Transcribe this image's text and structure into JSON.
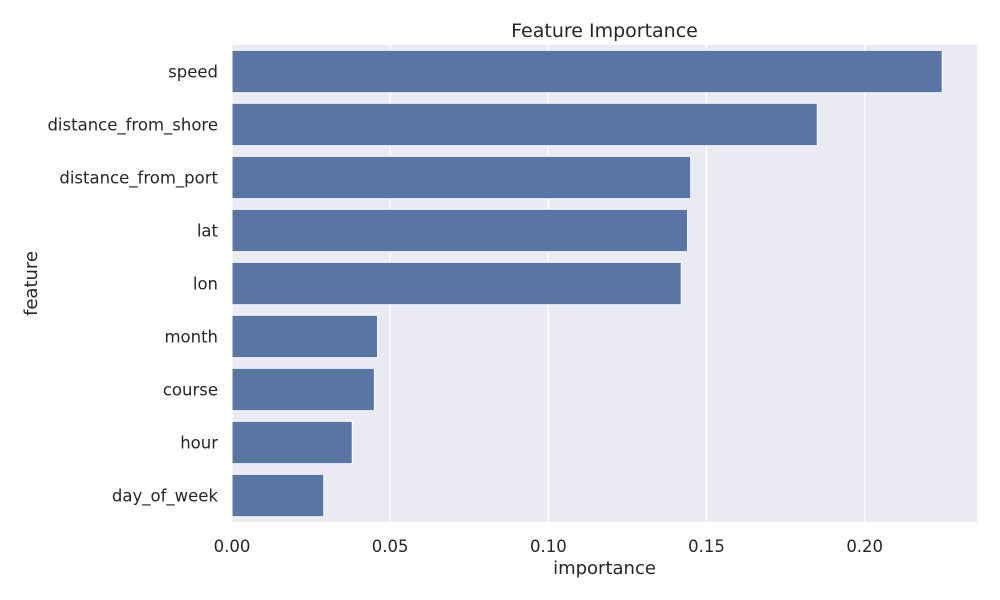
{
  "chart_data": {
    "type": "bar",
    "orientation": "horizontal",
    "title": "Feature Importance",
    "xlabel": "importance",
    "ylabel": "feature",
    "categories": [
      "speed",
      "distance_from_shore",
      "distance_from_port",
      "lat",
      "lon",
      "month",
      "course",
      "hour",
      "day_of_week"
    ],
    "values": [
      0.2245,
      0.185,
      0.145,
      0.144,
      0.142,
      0.046,
      0.045,
      0.038,
      0.029
    ],
    "xlim": [
      0,
      0.2355
    ],
    "xticks": [
      0.0,
      0.05,
      0.1,
      0.15,
      0.2
    ],
    "xtick_labels": [
      "0.00",
      "0.05",
      "0.10",
      "0.15",
      "0.20"
    ],
    "grid": true,
    "legend": "none",
    "colors": {
      "bar": "#5875a4",
      "plot_background": "#eaeaf2",
      "grid": "#ffffff",
      "text": "#262626"
    }
  }
}
